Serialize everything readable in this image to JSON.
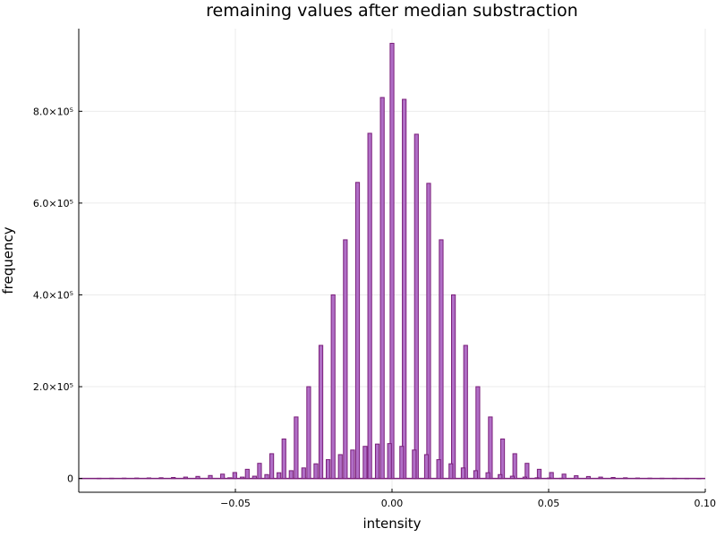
{
  "chart_data": {
    "type": "bar",
    "title": "remaining values after median substraction",
    "xlabel": "intensity",
    "ylabel": "frequency",
    "xlim": [
      -0.1,
      0.1
    ],
    "ylim": [
      -30000,
      980000
    ],
    "grid": true,
    "legend": "none",
    "bar_width": 0.0012,
    "x_ticks": [
      {
        "value": -0.05,
        "label": "−0.05"
      },
      {
        "value": 0.0,
        "label": "0.00"
      },
      {
        "value": 0.05,
        "label": "0.05"
      },
      {
        "value": 0.1,
        "label": "0.10"
      }
    ],
    "y_ticks": [
      {
        "value": 0,
        "label": "0"
      },
      {
        "value": 200000,
        "label": "2.0×10⁵"
      },
      {
        "value": 400000,
        "label": "4.0×10⁵"
      },
      {
        "value": 600000,
        "label": "6.0×10⁵"
      },
      {
        "value": 800000,
        "label": "8.0×10⁵"
      }
    ],
    "x": [
      -0.0935,
      -0.0895,
      -0.0855,
      -0.0815,
      -0.0776,
      -0.0737,
      -0.0698,
      -0.0659,
      -0.062,
      -0.058,
      -0.0541,
      -0.0502,
      -0.0462,
      -0.0423,
      -0.0384,
      -0.0345,
      -0.0306,
      -0.0266,
      -0.0227,
      -0.0188,
      -0.0149,
      -0.011,
      -0.0071,
      -0.0031,
      0.0,
      0.0039,
      0.0078,
      0.0117,
      0.0157,
      0.0196,
      0.0235,
      0.0274,
      0.0314,
      0.0353,
      0.0392,
      0.0431,
      0.047,
      0.0509,
      0.0549,
      0.0588,
      0.0627,
      0.0666,
      0.0706,
      0.0745,
      0.0784,
      0.0823,
      0.0862,
      0.0902,
      0.0941,
      0.098,
      -0.0518,
      -0.0478,
      -0.0439,
      -0.04,
      -0.0361,
      -0.0322,
      -0.0282,
      -0.0243,
      -0.0204,
      -0.0165,
      -0.0126,
      -0.0086,
      -0.0047,
      -0.0008,
      0.0031,
      0.0071,
      0.011,
      0.0149,
      0.0188,
      0.0227,
      0.0267,
      0.0306,
      0.0345,
      0.0384,
      0.0424,
      0.0463,
      0.0502,
      0.0541
    ],
    "values": [
      400,
      500,
      700,
      900,
      1200,
      1600,
      2200,
      3000,
      4500,
      6500,
      9500,
      13000,
      20000,
      33000,
      54000,
      86000,
      134000,
      200000,
      290000,
      400000,
      520000,
      645000,
      752000,
      830000,
      948000,
      826000,
      750000,
      643000,
      520000,
      400000,
      290000,
      200000,
      134000,
      86000,
      54000,
      33000,
      20000,
      13000,
      9500,
      6000,
      4300,
      3000,
      2200,
      1500,
      1000,
      700,
      500,
      400,
      300,
      200,
      1500,
      3000,
      5000,
      8500,
      12500,
      17000,
      23000,
      32000,
      41000,
      52000,
      62000,
      70000,
      75000,
      76000,
      70000,
      62000,
      52000,
      41000,
      32000,
      23000,
      17000,
      12500,
      8500,
      5000,
      3000,
      1500,
      900,
      500
    ]
  }
}
